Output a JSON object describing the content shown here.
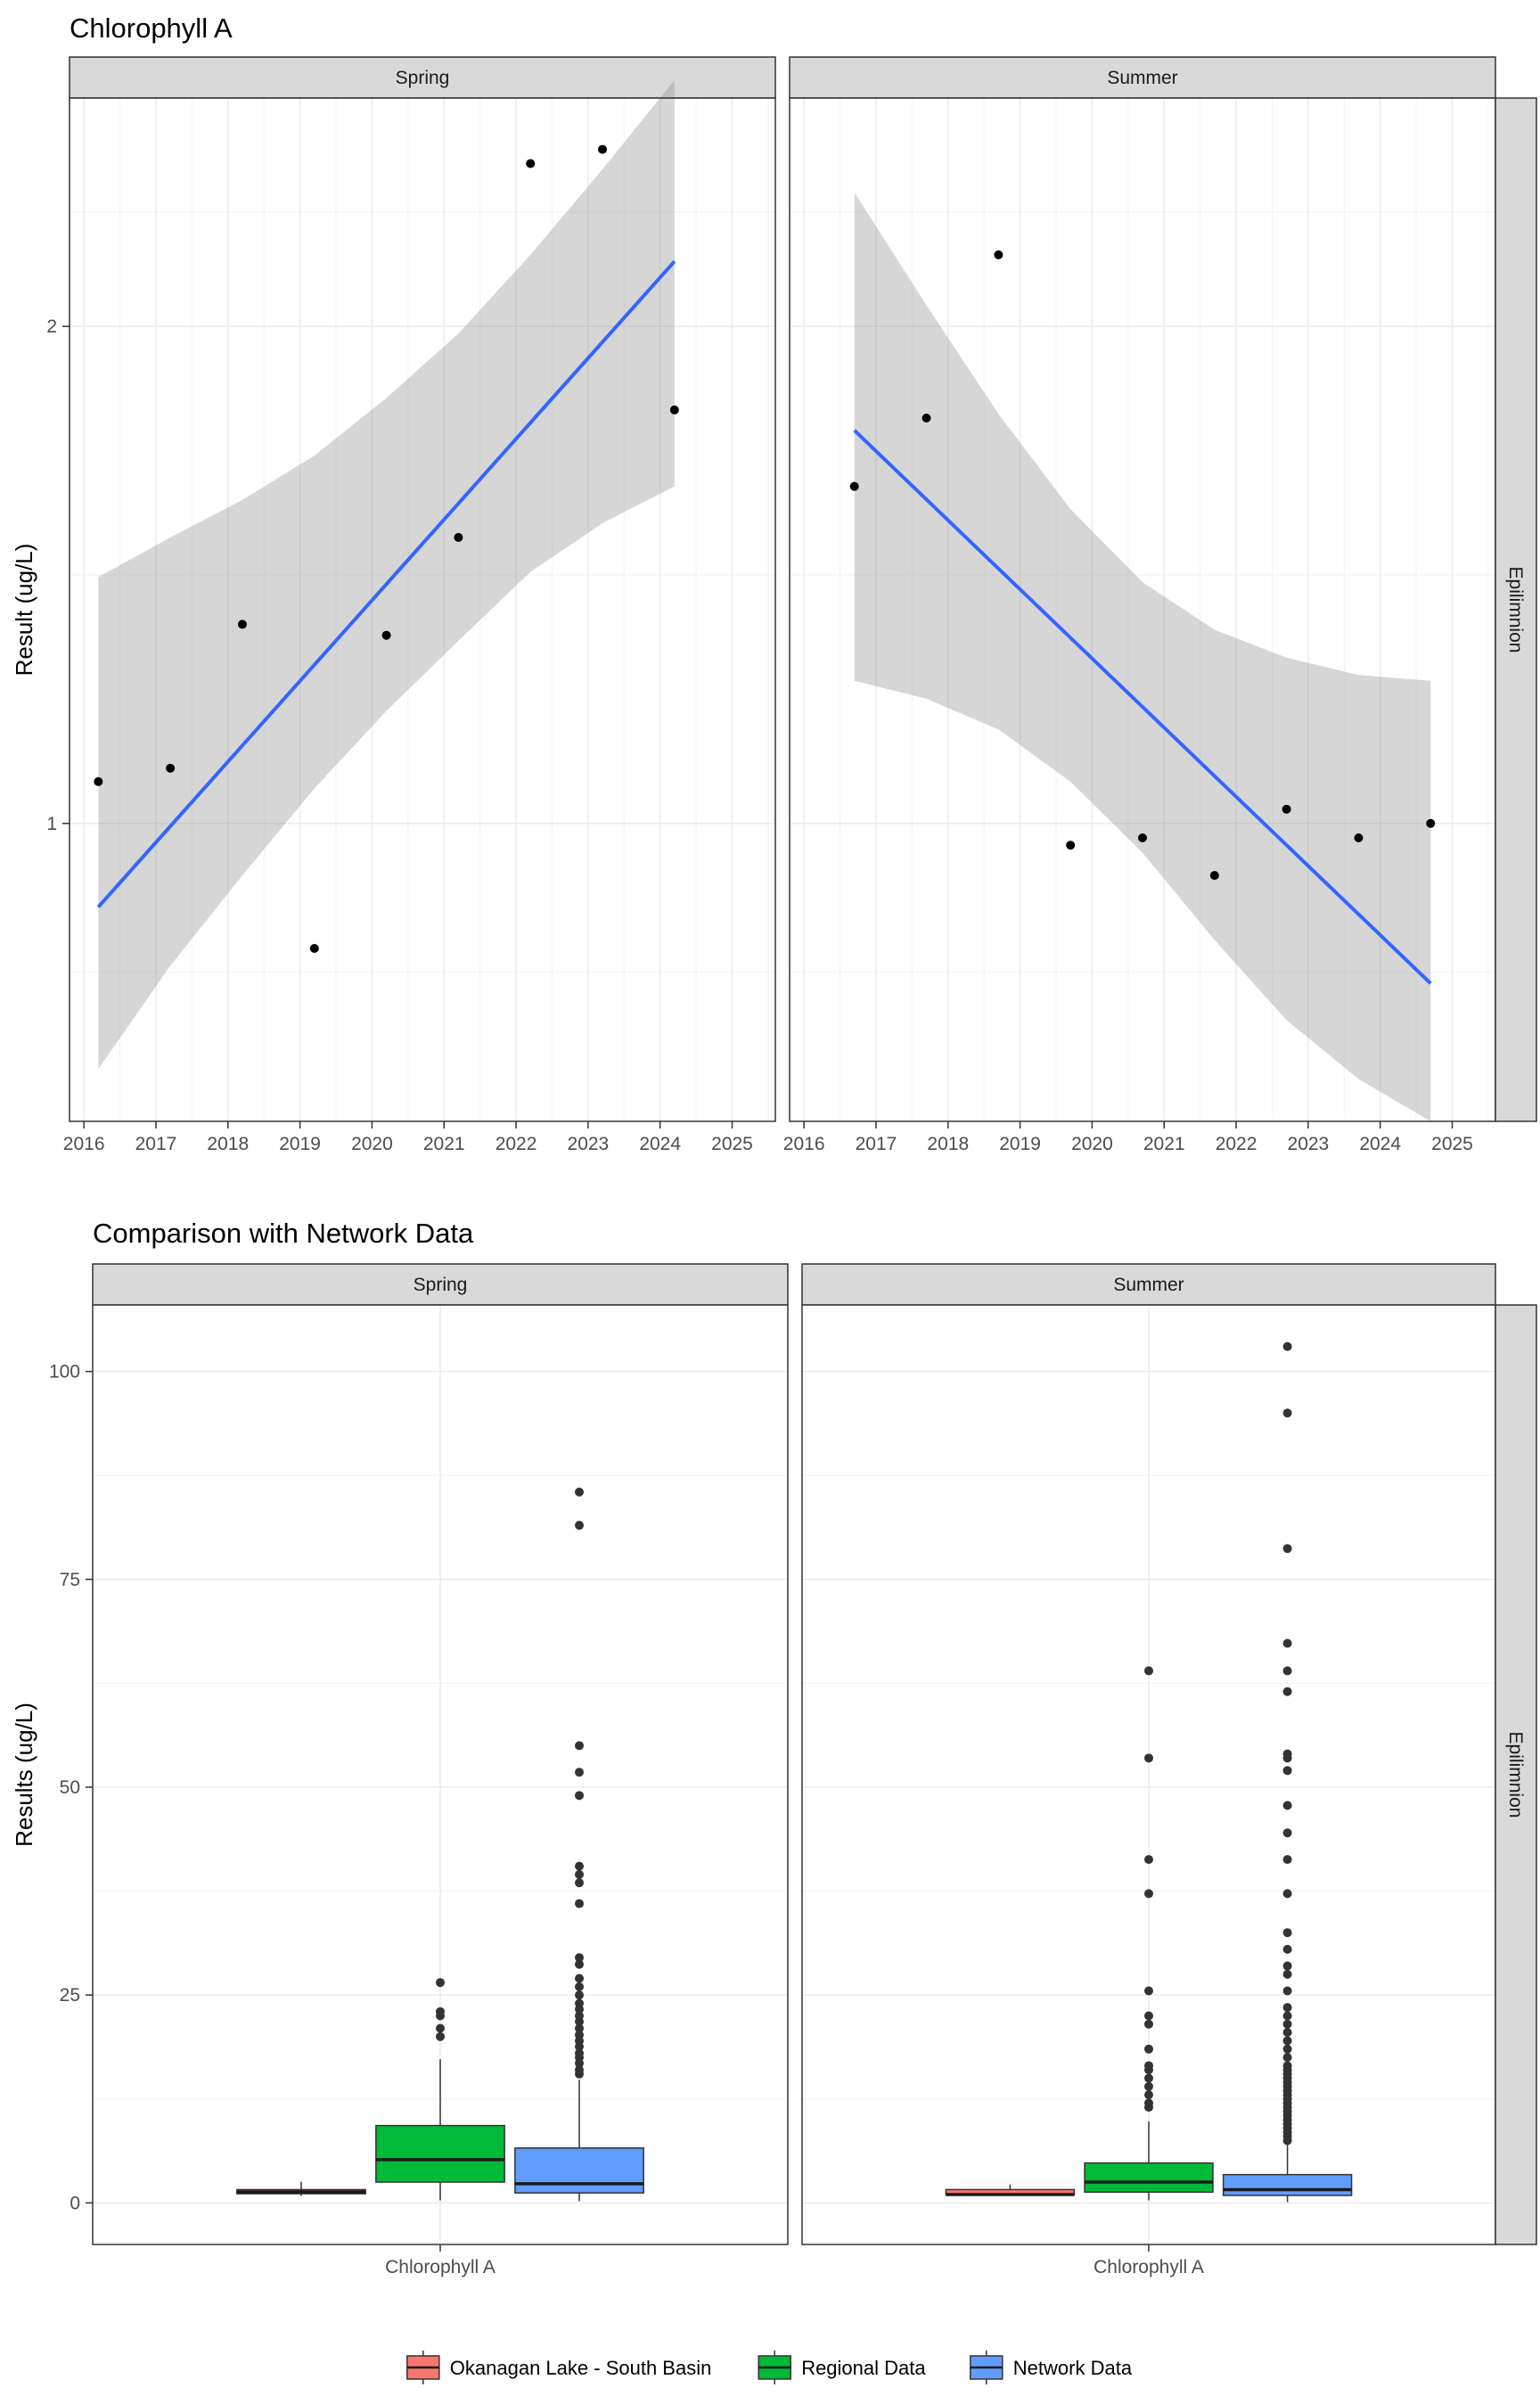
{
  "chart_data": [
    {
      "type": "scatter",
      "title": "Chlorophyll A",
      "ylabel": "Result (ug/L)",
      "xlabel": "",
      "y_scale": "log",
      "x_range": [
        2015.8,
        2025.6
      ],
      "ylim": [
        0.66,
        2.75
      ],
      "x_ticks": [
        "2016",
        "2017",
        "2018",
        "2019",
        "2020",
        "2021",
        "2022",
        "2023",
        "2024",
        "2025"
      ],
      "y_ticks": [
        "1",
        "2"
      ],
      "row_strip": "Epilimnion",
      "panels": [
        {
          "strip": "Spring",
          "points": [
            {
              "x": 2016.2,
              "y": 1.06
            },
            {
              "x": 2017.2,
              "y": 1.08
            },
            {
              "x": 2018.2,
              "y": 1.32
            },
            {
              "x": 2019.2,
              "y": 0.84
            },
            {
              "x": 2020.2,
              "y": 1.3
            },
            {
              "x": 2021.2,
              "y": 1.49
            },
            {
              "x": 2022.2,
              "y": 2.51
            },
            {
              "x": 2023.2,
              "y": 2.56
            },
            {
              "x": 2024.2,
              "y": 1.78
            }
          ],
          "trend": {
            "x": [
              2016.2,
              2024.2
            ],
            "y": [
              0.89,
              2.19
            ]
          },
          "ci_upper": {
            "x": [
              2016.2,
              2017.2,
              2018.2,
              2019.2,
              2020.2,
              2021.2,
              2022.2,
              2023.2,
              2024.2
            ],
            "y": [
              1.41,
              1.49,
              1.57,
              1.67,
              1.81,
              1.98,
              2.21,
              2.49,
              2.82
            ]
          },
          "ci_lower": {
            "x": [
              2016.2,
              2017.2,
              2018.2,
              2019.2,
              2020.2,
              2021.2,
              2022.2,
              2023.2,
              2024.2
            ],
            "y": [
              0.71,
              0.82,
              0.93,
              1.05,
              1.17,
              1.29,
              1.42,
              1.52,
              1.6
            ]
          }
        },
        {
          "strip": "Summer",
          "points": [
            {
              "x": 2016.7,
              "y": 1.6
            },
            {
              "x": 2017.7,
              "y": 1.76
            },
            {
              "x": 2018.7,
              "y": 2.21
            },
            {
              "x": 2019.7,
              "y": 0.97
            },
            {
              "x": 2020.7,
              "y": 0.98
            },
            {
              "x": 2021.7,
              "y": 0.93
            },
            {
              "x": 2022.7,
              "y": 1.02
            },
            {
              "x": 2023.7,
              "y": 0.98
            },
            {
              "x": 2024.7,
              "y": 1.0
            }
          ],
          "trend": {
            "x": [
              2016.7,
              2024.7
            ],
            "y": [
              1.73,
              0.8
            ]
          },
          "ci_upper": {
            "x": [
              2016.7,
              2017.7,
              2018.7,
              2019.7,
              2020.7,
              2021.7,
              2022.7,
              2023.7,
              2024.7
            ],
            "y": [
              2.41,
              2.06,
              1.77,
              1.55,
              1.4,
              1.31,
              1.26,
              1.23,
              1.22
            ]
          },
          "ci_lower": {
            "x": [
              2016.7,
              2017.7,
              2018.7,
              2019.7,
              2020.7,
              2021.7,
              2022.7,
              2023.7,
              2024.7
            ],
            "y": [
              1.22,
              1.19,
              1.14,
              1.06,
              0.96,
              0.85,
              0.76,
              0.7,
              0.66
            ]
          }
        }
      ]
    },
    {
      "type": "box",
      "title": "Comparison with Network Data",
      "ylabel": "Results (ug/L)",
      "xlabel": "",
      "ylim": [
        -5,
        108
      ],
      "y_ticks": [
        0,
        25,
        50,
        75,
        100
      ],
      "category": "Chlorophyll A",
      "row_strip": "Epilimnion",
      "legend": {
        "position": "bottom",
        "entries": [
          {
            "label": "Okanagan Lake - South Basin",
            "color": "#F8766D"
          },
          {
            "label": "Regional Data",
            "color": "#00BA38"
          },
          {
            "label": "Network Data",
            "color": "#619CFF"
          }
        ]
      },
      "panels": [
        {
          "strip": "Spring",
          "boxes": [
            {
              "series": "Okanagan Lake - South Basin",
              "min": 0.84,
              "q1": 1.1,
              "median": 1.32,
              "q3": 1.6,
              "max": 2.56,
              "outliers": []
            },
            {
              "series": "Regional Data",
              "min": 0.3,
              "q1": 2.5,
              "median": 5.2,
              "q3": 9.3,
              "max": 17.3,
              "outliers": [
                20,
                21,
                22.5,
                23,
                26.5
              ]
            },
            {
              "series": "Network Data",
              "min": 0.2,
              "q1": 1.2,
              "median": 2.3,
              "q3": 6.6,
              "max": 14.8,
              "outliers": [
                15.5,
                16,
                16.8,
                17.5,
                18,
                18.8,
                19.5,
                20.2,
                21,
                21.8,
                22.5,
                23.3,
                24,
                25,
                26,
                27,
                28.7,
                29.5,
                36,
                38.5,
                39.5,
                40.5,
                49,
                51.8,
                55,
                81.5,
                85.5
              ]
            }
          ]
        },
        {
          "strip": "Summer",
          "boxes": [
            {
              "series": "Okanagan Lake - South Basin",
              "min": 0.93,
              "q1": 0.98,
              "median": 1.0,
              "q3": 1.6,
              "max": 2.21,
              "outliers": []
            },
            {
              "series": "Regional Data",
              "min": 0.3,
              "q1": 1.3,
              "median": 2.5,
              "q3": 4.8,
              "max": 9.8,
              "outliers": [
                11.5,
                12,
                13,
                14,
                15,
                16,
                16.5,
                18.5,
                21.5,
                22.5,
                25.5,
                37.2,
                41.3,
                53.5,
                64
              ]
            },
            {
              "series": "Network Data",
              "min": 0.1,
              "q1": 0.9,
              "median": 1.6,
              "q3": 3.4,
              "max": 7.2,
              "outliers": [
                7.5,
                8,
                8.5,
                9,
                9.5,
                10,
                10.5,
                11,
                11.5,
                12,
                12.5,
                13,
                13.5,
                14,
                14.5,
                15,
                15.5,
                16,
                16.5,
                17.5,
                18.5,
                19.5,
                20.5,
                21.5,
                22.5,
                23.5,
                25.5,
                27.5,
                28.5,
                30.5,
                32.5,
                37.2,
                41.3,
                44.5,
                47.8,
                52,
                53.5,
                54,
                61.5,
                64,
                67.3,
                78.7,
                95,
                103
              ]
            }
          ]
        }
      ]
    }
  ]
}
